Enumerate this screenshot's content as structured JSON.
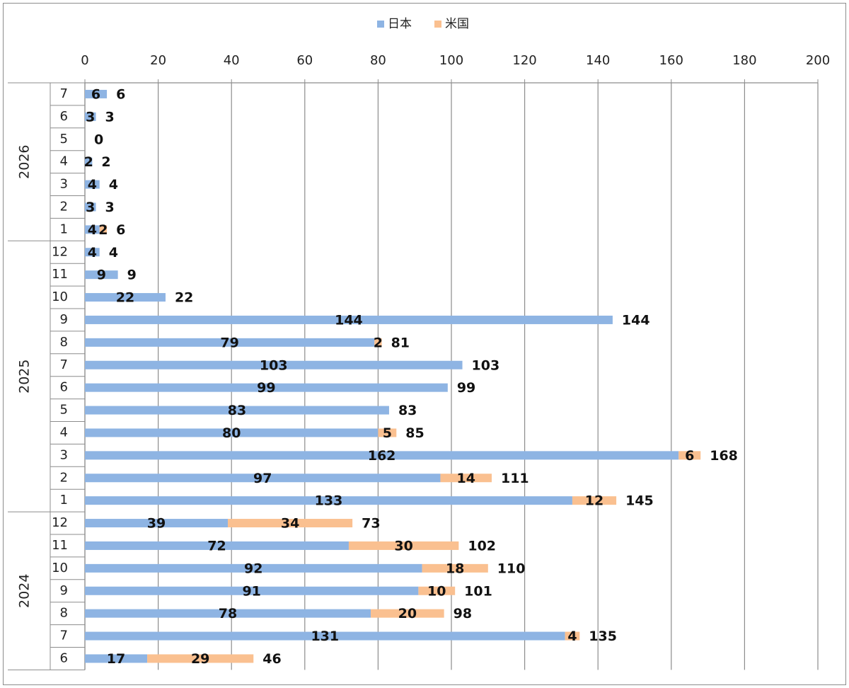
{
  "chart_data": {
    "type": "bar",
    "orientation": "horizontal",
    "stacked": true,
    "xlim": [
      0,
      200
    ],
    "x_ticks": [
      0,
      20,
      40,
      60,
      80,
      100,
      120,
      140,
      160,
      180,
      200
    ],
    "grid": true,
    "legend_position": "top",
    "series": [
      {
        "name": "日本",
        "color": "#8EB4E3"
      },
      {
        "name": "米国",
        "color": "#FAC090"
      }
    ],
    "groups": [
      {
        "year": "2026",
        "rows": [
          {
            "month": "7",
            "jp": 6,
            "us": 0,
            "total": 6
          },
          {
            "month": "6",
            "jp": 3,
            "us": 0,
            "total": 3
          },
          {
            "month": "5",
            "jp": 0,
            "us": 0,
            "total": 0
          },
          {
            "month": "4",
            "jp": 2,
            "us": 0,
            "total": 2
          },
          {
            "month": "3",
            "jp": 4,
            "us": 0,
            "total": 4
          },
          {
            "month": "2",
            "jp": 3,
            "us": 0,
            "total": 3
          },
          {
            "month": "1",
            "jp": 4,
            "us": 2,
            "total": 6
          }
        ]
      },
      {
        "year": "2025",
        "rows": [
          {
            "month": "12",
            "jp": 4,
            "us": 0,
            "total": 4
          },
          {
            "month": "11",
            "jp": 9,
            "us": 0,
            "total": 9
          },
          {
            "month": "10",
            "jp": 22,
            "us": 0,
            "total": 22
          },
          {
            "month": "9",
            "jp": 144,
            "us": 0,
            "total": 144
          },
          {
            "month": "8",
            "jp": 79,
            "us": 2,
            "total": 81
          },
          {
            "month": "7",
            "jp": 103,
            "us": 0,
            "total": 103
          },
          {
            "month": "6",
            "jp": 99,
            "us": 0,
            "total": 99
          },
          {
            "month": "5",
            "jp": 83,
            "us": 0,
            "total": 83
          },
          {
            "month": "4",
            "jp": 80,
            "us": 5,
            "total": 85
          },
          {
            "month": "3",
            "jp": 162,
            "us": 6,
            "total": 168
          },
          {
            "month": "2",
            "jp": 97,
            "us": 14,
            "total": 111
          },
          {
            "month": "1",
            "jp": 133,
            "us": 12,
            "total": 145
          }
        ]
      },
      {
        "year": "2024",
        "rows": [
          {
            "month": "12",
            "jp": 39,
            "us": 34,
            "total": 73
          },
          {
            "month": "11",
            "jp": 72,
            "us": 30,
            "total": 102
          },
          {
            "month": "10",
            "jp": 92,
            "us": 18,
            "total": 110
          },
          {
            "month": "9",
            "jp": 91,
            "us": 10,
            "total": 101
          },
          {
            "month": "8",
            "jp": 78,
            "us": 20,
            "total": 98
          },
          {
            "month": "7",
            "jp": 131,
            "us": 4,
            "total": 135
          },
          {
            "month": "6",
            "jp": 17,
            "us": 29,
            "total": 46
          }
        ]
      }
    ]
  }
}
